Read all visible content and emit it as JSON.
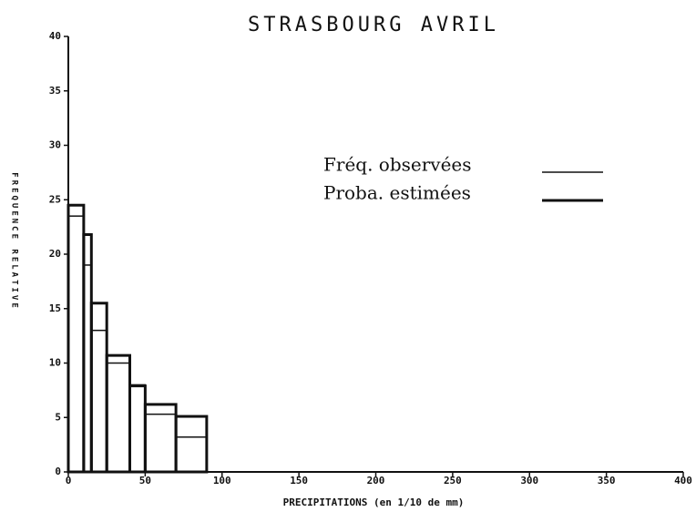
{
  "chart_data": {
    "type": "histogram",
    "title": "STRASBOURG  AVRIL",
    "xlabel": "PRECIPITATIONS (en 1/10 de mm)",
    "ylabel": "FREQUENCE RELATIVE",
    "bins": [
      0,
      10,
      15,
      25,
      40,
      50,
      70,
      90
    ],
    "series": [
      {
        "name": "Fréq. observées",
        "color": "#111111",
        "values": [
          23.5,
          19,
          13,
          10,
          8,
          5.3,
          3.2
        ]
      },
      {
        "name": "Proba. estimées",
        "color": "#111111",
        "values": [
          24.5,
          21.8,
          15.5,
          10.7,
          7.9,
          6.2,
          5.1
        ]
      }
    ],
    "xlim": [
      0,
      400
    ],
    "xticks": [
      0,
      50,
      100,
      150,
      200,
      250,
      300,
      350,
      400
    ],
    "ylim": [
      0,
      40
    ],
    "yticks": [
      0,
      5,
      10,
      15,
      20,
      25,
      30,
      35,
      40
    ]
  }
}
